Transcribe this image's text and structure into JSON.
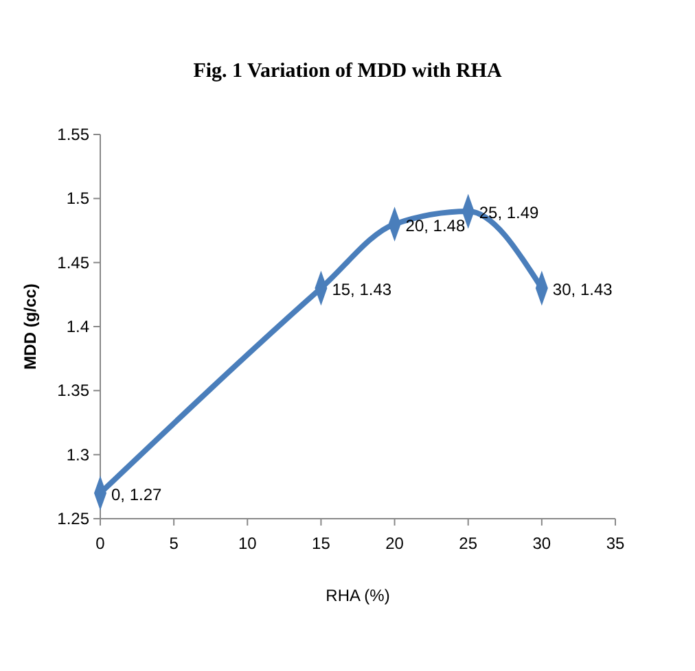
{
  "chart_data": {
    "type": "line",
    "title": "Fig. 1 Variation of MDD with RHA",
    "xlabel": "RHA (%)",
    "ylabel": "MDD (g/cc)",
    "x": [
      0,
      15,
      20,
      25,
      30
    ],
    "series": [
      {
        "color": "#4a7ebb",
        "values": [
          1.27,
          1.43,
          1.48,
          1.49,
          1.43
        ],
        "value_labels": [
          "0, 1.27",
          "15, 1.43",
          "20, 1.48",
          "25, 1.49",
          "30, 1.43"
        ]
      }
    ],
    "xlim": [
      0,
      35
    ],
    "xticks": [
      0,
      5,
      10,
      15,
      20,
      25,
      30,
      35
    ],
    "ylim": [
      1.25,
      1.55
    ],
    "yticks": [
      1.25,
      1.3,
      1.35,
      1.4,
      1.45,
      1.5,
      1.55
    ],
    "grid": false,
    "marker": "diamond",
    "line_style": "solid"
  }
}
